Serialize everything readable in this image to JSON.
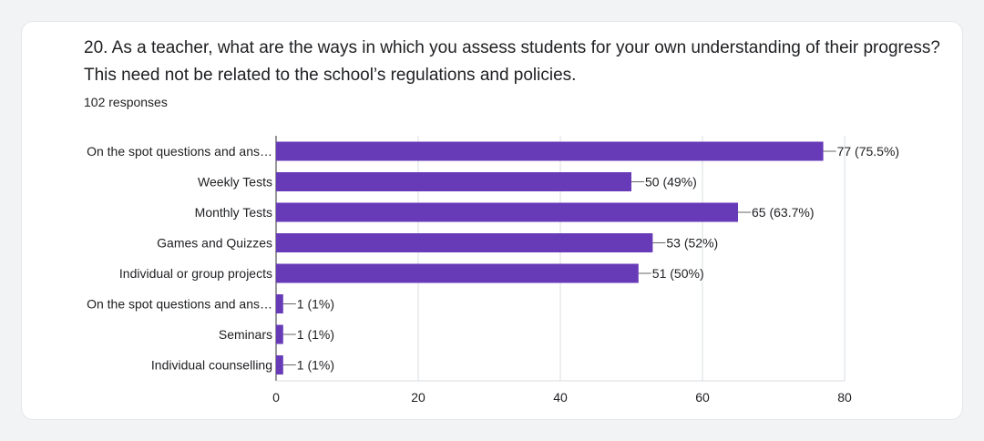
{
  "chart_data": {
    "type": "bar",
    "orientation": "horizontal",
    "title": "20. As a teacher, what are the ways in which you assess students for your own understanding of their progress? This need not be related to the school’s regulations and policies.",
    "subtitle": "102 responses",
    "categories": [
      "On the spot questions and ans…",
      "Weekly Tests",
      "Monthly Tests",
      "Games and Quizzes",
      "Individual or group projects",
      "On the spot questions and ans…",
      "Seminars",
      "Individual counselling"
    ],
    "values": [
      77,
      50,
      65,
      53,
      51,
      1,
      1,
      1
    ],
    "data_labels": [
      "77 (75.5%)",
      "50 (49%)",
      "65 (63.7%)",
      "53 (52%)",
      "51 (50%)",
      "1 (1%)",
      "1 (1%)",
      "1 (1%)"
    ],
    "xlim": [
      0,
      80
    ],
    "x_ticks": [
      0,
      20,
      40,
      60,
      80
    ],
    "bar_color": "#673ab7",
    "grid": true
  }
}
